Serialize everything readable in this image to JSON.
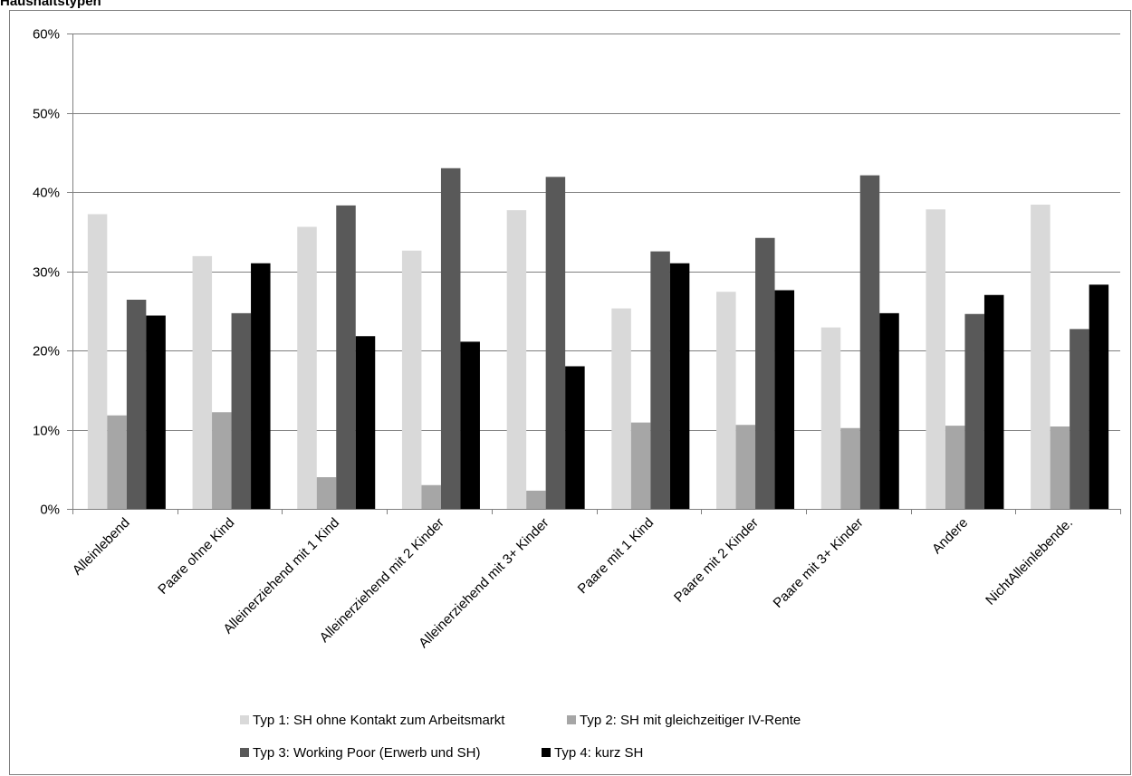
{
  "chart_data": {
    "type": "bar",
    "title": "Haushaltstypen",
    "xlabel": "",
    "ylabel": "",
    "ylim": [
      0,
      60
    ],
    "y_ticks": [
      "0%",
      "10%",
      "20%",
      "30%",
      "40%",
      "50%",
      "60%"
    ],
    "y_tick_values": [
      0,
      10,
      20,
      30,
      40,
      50,
      60
    ],
    "grid": true,
    "legend_position": "bottom",
    "categories": [
      "Alleinlebend",
      "Paare ohne Kind",
      "Alleinerziehend mit 1 Kind",
      "Alleinerziehend mit 2 Kinder",
      "Alleinerziehend mit 3+ Kinder",
      "Paare mit 1 Kind",
      "Paare mit 2 Kinder",
      "Paare mit 3+ Kinder",
      "Andere",
      "NichtAlleinlebende."
    ],
    "series": [
      {
        "name": "Typ 1: SH ohne Kontakt zum Arbeitsmarkt",
        "color": "#d9d9d9",
        "values": [
          37.2,
          31.9,
          35.6,
          32.6,
          37.7,
          25.3,
          27.4,
          22.9,
          37.8,
          38.4
        ]
      },
      {
        "name": "Typ 2: SH mit gleichzeitiger IV-Rente",
        "color": "#a6a6a6",
        "values": [
          11.8,
          12.2,
          4.0,
          3.0,
          2.3,
          10.9,
          10.6,
          10.2,
          10.5,
          10.4
        ]
      },
      {
        "name": "Typ 3: Working Poor (Erwerb  und SH)",
        "color": "#595959",
        "values": [
          26.4,
          24.7,
          38.3,
          43.0,
          41.9,
          32.5,
          34.2,
          42.1,
          24.6,
          22.7
        ]
      },
      {
        "name": "Typ 4: kurz SH",
        "color": "#000000",
        "values": [
          24.4,
          31.0,
          21.8,
          21.1,
          18.0,
          31.0,
          27.6,
          24.7,
          27.0,
          28.3
        ]
      }
    ]
  }
}
